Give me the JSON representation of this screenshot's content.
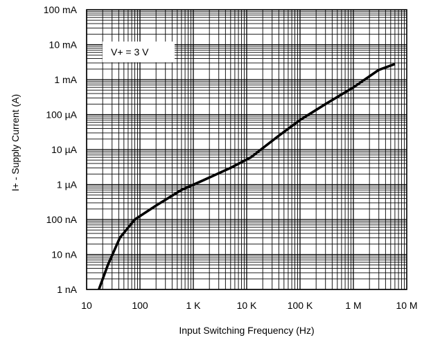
{
  "chart_data": {
    "type": "line",
    "title": "",
    "xlabel": "Input Switching Frequency (Hz)",
    "ylabel": "I+ - Supply Current (A)",
    "x_scale": "log",
    "y_scale": "log",
    "xlim": [
      10,
      10000000
    ],
    "ylim": [
      1e-09,
      0.1
    ],
    "grid": true,
    "x_ticks": [
      {
        "value": 10,
        "label": "10"
      },
      {
        "value": 100,
        "label": "100"
      },
      {
        "value": 1000,
        "label": "1 K"
      },
      {
        "value": 10000,
        "label": "10 K"
      },
      {
        "value": 100000,
        "label": "100 K"
      },
      {
        "value": 1000000,
        "label": "1 M"
      },
      {
        "value": 10000000,
        "label": "10 M"
      }
    ],
    "y_ticks": [
      {
        "value": 1e-09,
        "label": "1 nA"
      },
      {
        "value": 1e-08,
        "label": "10 nA"
      },
      {
        "value": 1e-07,
        "label": "100 nA"
      },
      {
        "value": 1e-06,
        "label": "1 µA"
      },
      {
        "value": 1e-05,
        "label": "10 µA"
      },
      {
        "value": 0.0001,
        "label": "100 µA"
      },
      {
        "value": 0.001,
        "label": "1 mA"
      },
      {
        "value": 0.01,
        "label": "10 mA"
      },
      {
        "value": 0.1,
        "label": "100 mA"
      }
    ],
    "series": [
      {
        "x": [
          17,
          25,
          42,
          80,
          200,
          600,
          1500,
          5000,
          12000,
          40000,
          100000,
          300000,
          1000000,
          3000000,
          6000000
        ],
        "y": [
          1e-09,
          5e-09,
          3e-08,
          1e-07,
          2.5e-07,
          7e-07,
          1.3e-06,
          3e-06,
          6e-06,
          2.5e-05,
          7e-05,
          0.0002,
          0.0006,
          0.0019,
          0.0028
        ]
      }
    ],
    "annotations": [
      {
        "text": "V+ = 3 V"
      }
    ]
  }
}
